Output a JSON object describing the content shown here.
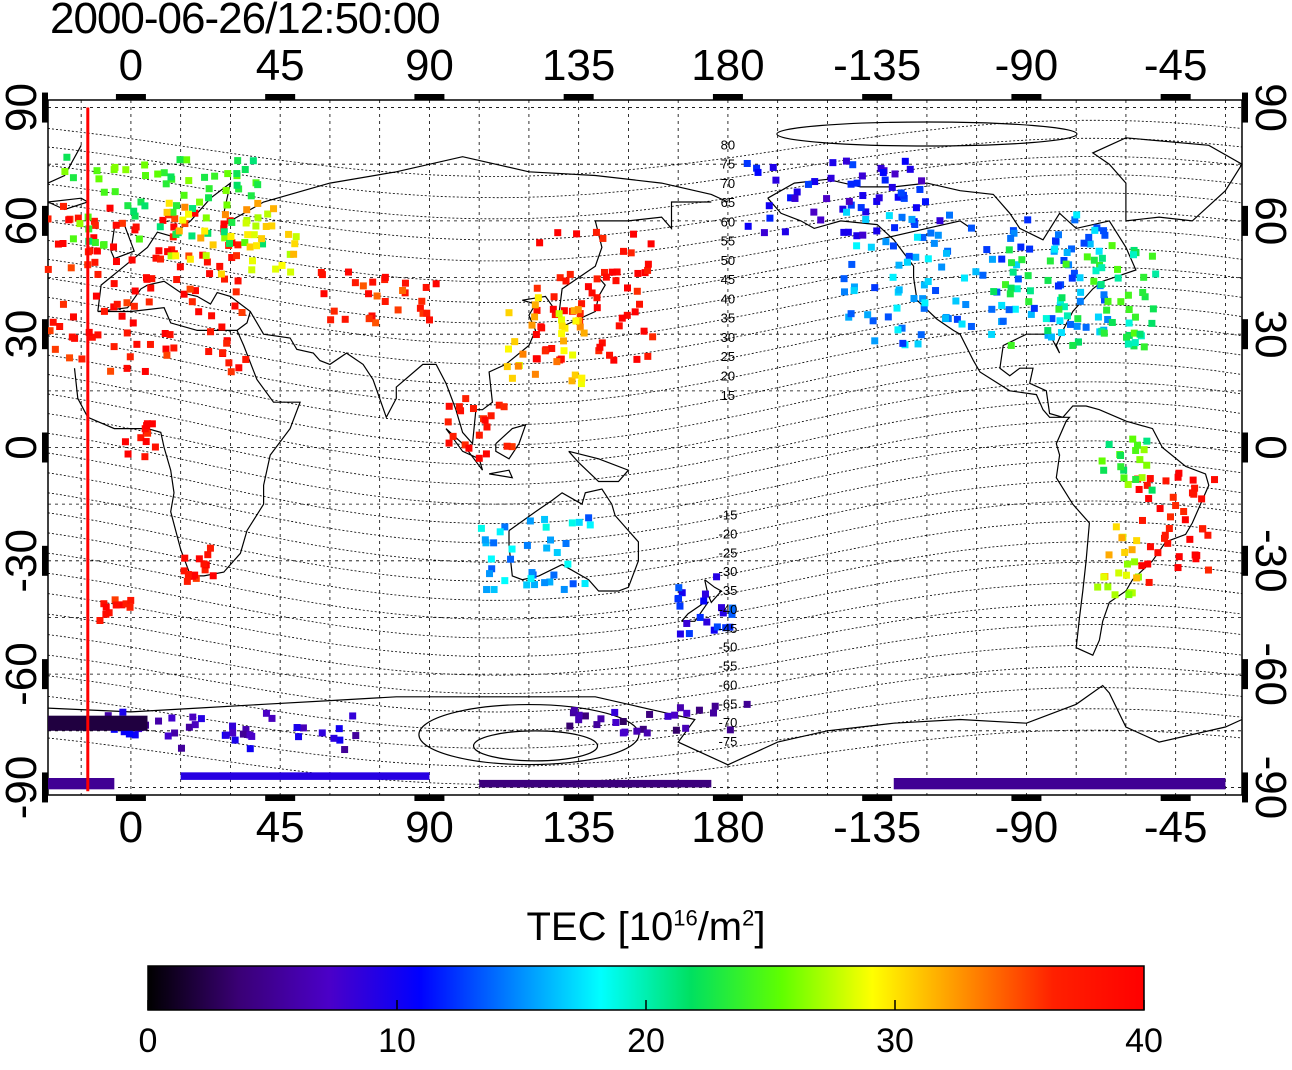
{
  "title": "2000-06-26/12:50:00",
  "colorbar": {
    "label_prefix": "TEC  [10",
    "label_exp": "16",
    "label_mid": "/m",
    "label_exp2": "2",
    "label_suffix": "]",
    "ticks": [
      "0",
      "10",
      "20",
      "30",
      "40"
    ],
    "range": [
      0,
      40
    ],
    "stops": [
      "#000000",
      "#3a0075",
      "#4b00c8",
      "#0000ff",
      "#0080ff",
      "#00ffff",
      "#00e060",
      "#60ff00",
      "#ffff00",
      "#ff9000",
      "#ff2000",
      "#ff0000"
    ]
  },
  "map": {
    "x_ticks": [
      "0",
      "45",
      "90",
      "135",
      "180",
      "-135",
      "-90",
      "-45"
    ],
    "y_ticks": [
      "90",
      "60",
      "30",
      "0",
      "-30",
      "-60",
      "-90"
    ],
    "x_tick_lons": [
      0,
      45,
      90,
      135,
      180,
      225,
      270,
      315
    ],
    "y_tick_lats": [
      90,
      60,
      30,
      0,
      -30,
      -60,
      -90
    ],
    "lon_range": [
      -25,
      335
    ],
    "lat_range": [
      -92,
      92
    ],
    "marker_lon": -13,
    "marker_color": "#ff0000",
    "contour_labels": [
      "80",
      "75",
      "70",
      "65",
      "60",
      "55",
      "50",
      "45",
      "40",
      "35",
      "30",
      "25",
      "20",
      "15",
      "-15",
      "-20",
      "-25",
      "-30",
      "-35",
      "-40",
      "-45",
      "-50",
      "-55",
      "-60",
      "-65",
      "-70",
      "-75"
    ],
    "tec_clusters": [
      {
        "lon": 5,
        "lat": 42,
        "w": 30,
        "h": 22,
        "v": 38
      },
      {
        "lon": 10,
        "lat": 65,
        "w": 30,
        "h": 12,
        "v": 24
      },
      {
        "lon": 30,
        "lat": 55,
        "w": 20,
        "h": 10,
        "v": 30
      },
      {
        "lon": 75,
        "lat": 40,
        "w": 18,
        "h": 7,
        "v": 37
      },
      {
        "lon": 140,
        "lat": 40,
        "w": 18,
        "h": 18,
        "v": 39
      },
      {
        "lon": 125,
        "lat": 28,
        "w": 12,
        "h": 12,
        "v": 31
      },
      {
        "lon": 215,
        "lat": 66,
        "w": 30,
        "h": 10,
        "v": 10
      },
      {
        "lon": 255,
        "lat": 45,
        "w": 40,
        "h": 18,
        "v": 15
      },
      {
        "lon": 285,
        "lat": 40,
        "w": 25,
        "h": 14,
        "v": 22
      },
      {
        "lon": 315,
        "lat": -22,
        "w": 12,
        "h": 16,
        "v": 39
      },
      {
        "lon": 297,
        "lat": -30,
        "w": 8,
        "h": 10,
        "v": 29
      },
      {
        "lon": 122,
        "lat": -28,
        "w": 18,
        "h": 10,
        "v": 16
      },
      {
        "lon": 172,
        "lat": -42,
        "w": 10,
        "h": 8,
        "v": 11
      },
      {
        "lon": 22,
        "lat": -30,
        "w": 6,
        "h": 6,
        "v": 38
      },
      {
        "lon": -5,
        "lat": -42,
        "w": 5,
        "h": 4,
        "v": 38
      },
      {
        "lon": 105,
        "lat": 5,
        "w": 10,
        "h": 8,
        "v": 38
      },
      {
        "lon": 3,
        "lat": 2,
        "w": 5,
        "h": 5,
        "v": 38
      },
      {
        "lon": 300,
        "lat": -5,
        "w": 8,
        "h": 8,
        "v": 24
      },
      {
        "lon": 30,
        "lat": -75,
        "w": 40,
        "h": 5,
        "v": 8
      },
      {
        "lon": 160,
        "lat": -72,
        "w": 30,
        "h": 4,
        "v": 6
      }
    ],
    "tec_bands": [
      {
        "lon0": -25,
        "lon1": 5,
        "lat": -73,
        "h": 4,
        "v": 2
      },
      {
        "lon0": 15,
        "lon1": 90,
        "lat": -87,
        "h": 2,
        "v": 9
      },
      {
        "lon0": 105,
        "lon1": 175,
        "lat": -89,
        "h": 2,
        "v": 4
      },
      {
        "lon0": 230,
        "lon1": 330,
        "lat": -89,
        "h": 3,
        "v": 5
      },
      {
        "lon0": -25,
        "lon1": -5,
        "lat": -89,
        "h": 3,
        "v": 5
      }
    ]
  }
}
